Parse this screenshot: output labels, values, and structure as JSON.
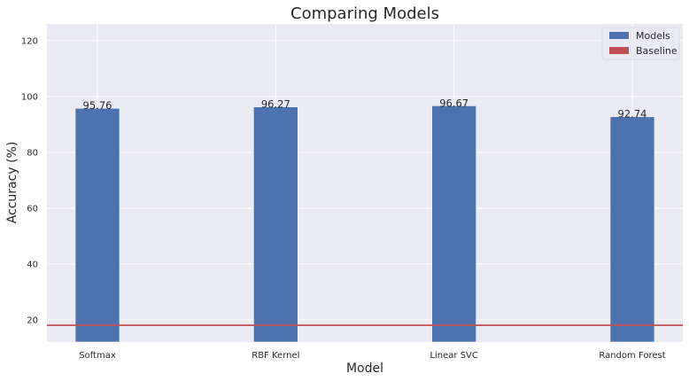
{
  "chart_data": {
    "type": "bar",
    "title": "Comparing Models",
    "xlabel": "Model",
    "ylabel": "Accuracy (%)",
    "categories": [
      "Softmax",
      "RBF Kernel",
      "Linear SVC",
      "Random Forest"
    ],
    "series": [
      {
        "name": "Models",
        "values": [
          95.76,
          96.27,
          96.67,
          92.74
        ],
        "color": "#4c72b0"
      }
    ],
    "data_labels": [
      "95.76",
      "96.27",
      "96.67",
      "92.74"
    ],
    "baseline": {
      "name": "Baseline",
      "value": 18,
      "color": "#c44e52"
    },
    "ylim": [
      12,
      126
    ],
    "yticks": [
      20,
      40,
      60,
      80,
      100,
      120
    ],
    "ytick_labels": [
      "20",
      "40",
      "60",
      "80",
      "100",
      "120"
    ],
    "grid": true,
    "legend_placement": "top-right",
    "background_color": "#eaeaf2",
    "grid_color": "#ffffff"
  }
}
